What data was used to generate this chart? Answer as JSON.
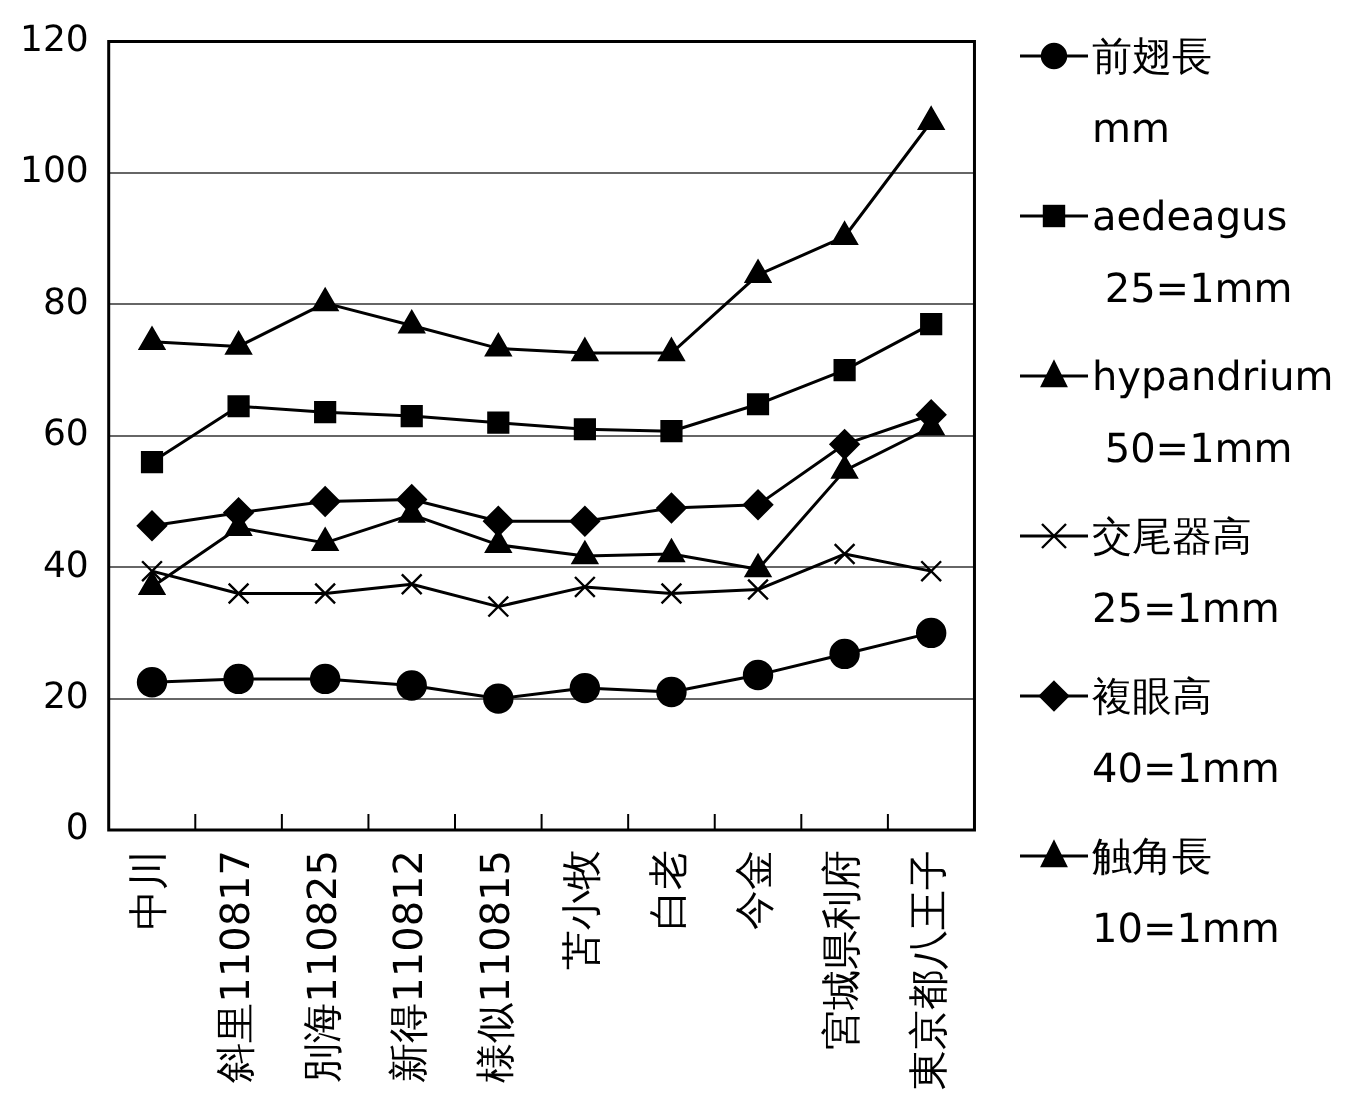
{
  "chart_data": {
    "type": "line",
    "categories": [
      "中川",
      "斜里110817",
      "別海110825",
      "新得110812",
      "様似110815",
      "苫小牧",
      "白老",
      "今金",
      "宮城県利府",
      "東京都八王子"
    ],
    "ylim": [
      0,
      120
    ],
    "yticks": [
      0,
      20,
      40,
      60,
      80,
      100,
      120
    ],
    "grid": "y",
    "legend": "right",
    "series": [
      {
        "name": "前翅長\nmm",
        "color": "#000000",
        "marker": "circle",
        "values": [
          22.5,
          23,
          23,
          22,
          20,
          21.6,
          21,
          23.6,
          26.8,
          30
        ]
      },
      {
        "name": "aedeagus\n 25=1mm",
        "color": "#000000",
        "marker": "square",
        "values": [
          56,
          64.5,
          63.6,
          63,
          62,
          61,
          60.7,
          64.8,
          70,
          77
        ]
      },
      {
        "name": "hypandrium\n 50=1mm",
        "color": "#000000",
        "marker": "triangle",
        "values": [
          37,
          46,
          43.7,
          48,
          43.4,
          41.7,
          42,
          39.7,
          54.7,
          61.3
        ]
      },
      {
        "name": "交尾器高\n25=1mm",
        "color": "#000000",
        "marker": "cross",
        "values": [
          39.4,
          36,
          36,
          37.4,
          34,
          37,
          36,
          36.6,
          42,
          39.4
        ]
      },
      {
        "name": "複眼高\n40=1mm",
        "color": "#000000",
        "marker": "diamond",
        "values": [
          46.3,
          48.3,
          50,
          50.3,
          47,
          47,
          49,
          49.5,
          58.7,
          63.2
        ]
      },
      {
        "name": "触角長\n10=1mm",
        "color": "#000000",
        "marker": "triangle",
        "values": [
          74.3,
          73.6,
          80.2,
          76.8,
          73.3,
          72.6,
          72.6,
          84.5,
          90.3,
          107.8
        ]
      }
    ]
  }
}
